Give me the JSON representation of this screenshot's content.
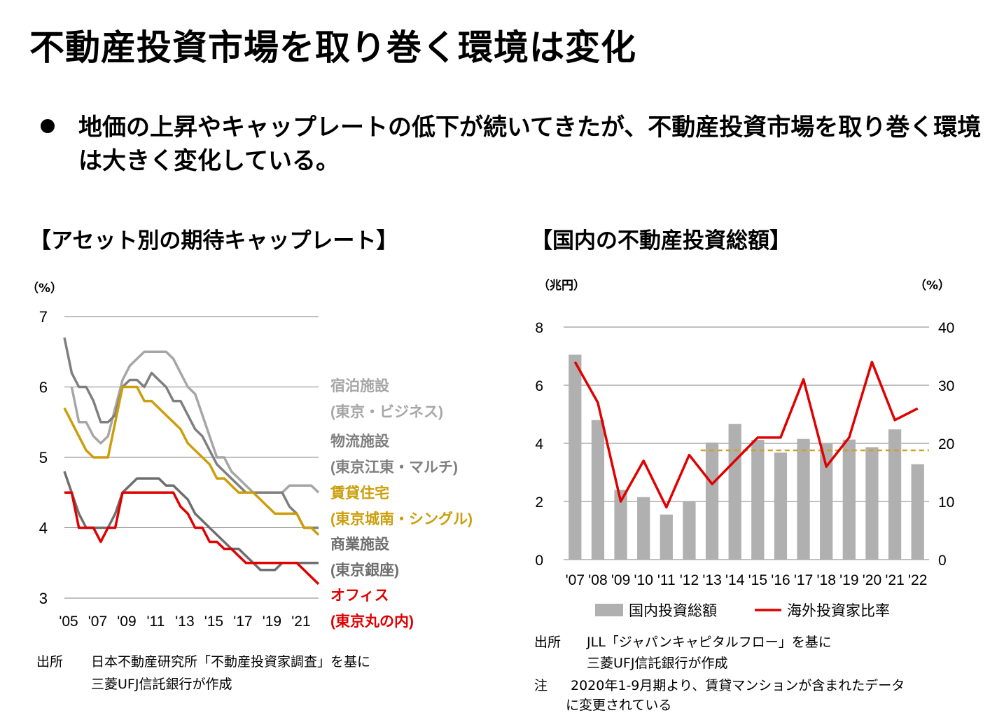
{
  "page": {
    "title": "不動産投資市場を取り巻く環境は変化",
    "bullet": "地価の上昇やキャップレートの低下が続いてきたが、不動産投資市場を取り巻く環境は大きく変化している。"
  },
  "left_chart": {
    "heading": "【アセット別の期待キャップレート】",
    "unit": "（%）",
    "source_label": "出所",
    "source_line1": "日本不動産研究所「不動産投資家調査」を基に",
    "source_line2": "三菱UFJ信託銀行が作成"
  },
  "right_chart": {
    "heading": "【国内の不動産投資総額】",
    "unit_left": "（兆円）",
    "unit_right": "（%）",
    "source_label": "出所",
    "source_line1": "JLL「ジャパンキャピタルフロー」を基に",
    "source_line2": "三菱UFJ信託銀行が作成",
    "note_label": "注",
    "note_line1": "2020年1-9月期より、賃貸マンションが含まれたデータ",
    "note_line2": "に変更されている"
  },
  "colors": {
    "hotel": "#A6A6A6",
    "logistics": "#7F7F7F",
    "residential": "#CC9E0A",
    "retail": "#6E6E6E",
    "office": "#E00000",
    "bar": "#B0B0B0",
    "dashed": "#C9A227",
    "grid": "#808080"
  },
  "chart_data": [
    {
      "type": "line",
      "title": "アセット別の期待キャップレート",
      "ylabel": "（%）",
      "ylim": [
        3,
        7
      ],
      "yticks": [
        "3",
        "4",
        "5",
        "6",
        "7"
      ],
      "x_tick_labels": [
        "'05",
        "'07",
        "'09",
        "'11",
        "'13",
        "'15",
        "'17",
        "'19",
        "'21"
      ],
      "x_range": [
        2005.0,
        2022.5
      ],
      "x_step": 0.5,
      "series": [
        {
          "key": "hotel",
          "name": "宿泊施設",
          "label_line1": "宿泊施設",
          "label_line2": "(東京・ビジネス)",
          "x_start": 2005.5,
          "values": [
            6.0,
            5.5,
            5.5,
            5.3,
            5.2,
            5.3,
            5.7,
            6.1,
            6.3,
            6.4,
            6.5,
            6.5,
            6.5,
            6.5,
            6.4,
            6.2,
            6.0,
            5.9,
            5.6,
            5.3,
            5.0,
            5.0,
            4.8,
            4.7,
            4.6,
            4.5,
            4.5,
            4.5,
            4.5,
            4.5,
            4.6,
            4.6,
            4.6,
            4.6,
            4.5
          ]
        },
        {
          "key": "logistics",
          "name": "物流施設",
          "label_line1": "物流施設",
          "label_line2": "(東京江東・マルチ)",
          "x_start": 2005.0,
          "values": [
            6.7,
            6.2,
            6.0,
            6.0,
            5.8,
            5.5,
            5.5,
            5.6,
            6.0,
            6.1,
            6.1,
            6.0,
            6.2,
            6.1,
            6.0,
            5.8,
            5.8,
            5.6,
            5.4,
            5.3,
            5.1,
            4.9,
            4.8,
            4.7,
            4.6,
            4.5,
            4.5,
            4.5,
            4.5,
            4.5,
            4.5,
            4.3,
            4.2,
            4.0,
            4.0,
            4.0
          ]
        },
        {
          "key": "residential",
          "name": "賃貸住宅",
          "label_line1": "賃貸住宅",
          "label_line2": "(東京城南・シングル)",
          "x_start": 2005.0,
          "values": [
            5.7,
            5.5,
            5.3,
            5.1,
            5.0,
            5.0,
            5.0,
            5.5,
            6.0,
            6.0,
            6.0,
            5.8,
            5.8,
            5.7,
            5.6,
            5.5,
            5.4,
            5.2,
            5.1,
            5.0,
            4.9,
            4.7,
            4.7,
            4.6,
            4.5,
            4.5,
            4.5,
            4.4,
            4.3,
            4.2,
            4.2,
            4.2,
            4.2,
            4.0,
            4.0,
            3.9
          ]
        },
        {
          "key": "retail",
          "name": "商業施設",
          "label_line1": "商業施設",
          "label_line2": "(東京銀座)",
          "x_start": 2005.0,
          "values": [
            4.8,
            4.5,
            4.2,
            4.0,
            4.0,
            4.0,
            4.0,
            4.2,
            4.5,
            4.6,
            4.7,
            4.7,
            4.7,
            4.7,
            4.6,
            4.6,
            4.5,
            4.4,
            4.2,
            4.1,
            4.0,
            3.9,
            3.8,
            3.7,
            3.7,
            3.6,
            3.5,
            3.4,
            3.4,
            3.4,
            3.5,
            3.5,
            3.5,
            3.5,
            3.5,
            3.5
          ]
        },
        {
          "key": "office",
          "name": "オフィス",
          "label_line1": "オフィス",
          "label_line2": "(東京丸の内)",
          "x_start": 2005.0,
          "values": [
            4.5,
            4.5,
            4.0,
            4.0,
            4.0,
            3.8,
            4.0,
            4.0,
            4.5,
            4.5,
            4.5,
            4.5,
            4.5,
            4.5,
            4.5,
            4.5,
            4.3,
            4.2,
            4.0,
            4.0,
            3.8,
            3.8,
            3.7,
            3.7,
            3.6,
            3.5,
            3.5,
            3.5,
            3.5,
            3.5,
            3.5,
            3.5,
            3.5,
            3.4,
            3.3,
            3.2
          ]
        }
      ]
    },
    {
      "type": "bar",
      "title": "国内の不動産投資総額",
      "categories": [
        "'07",
        "'08",
        "'09",
        "'10",
        "'11",
        "'12",
        "'13",
        "'14",
        "'15",
        "'16",
        "'17",
        "'18",
        "'19",
        "'20",
        "'21",
        "'22"
      ],
      "ylabel_left": "（兆円）",
      "ylabel_right": "（%）",
      "ylim_left": [
        0,
        8
      ],
      "ylim_right": [
        0,
        40
      ],
      "yticks_left": [
        "0",
        "2",
        "4",
        "6",
        "8"
      ],
      "yticks_right": [
        "0",
        "10",
        "20",
        "30",
        "40"
      ],
      "series": [
        {
          "name": "国内投資総額",
          "type": "bar",
          "axis": "left",
          "values": [
            7.05,
            4.8,
            2.4,
            2.15,
            1.55,
            1.98,
            4.03,
            4.67,
            4.12,
            3.68,
            4.15,
            4.0,
            4.13,
            3.87,
            4.48,
            3.28
          ]
        },
        {
          "name": "海外投資家比率",
          "type": "line",
          "axis": "right",
          "values": [
            34,
            27,
            10,
            17,
            9,
            18,
            13,
            17,
            21,
            21,
            31,
            16,
            21,
            34,
            24,
            26
          ]
        }
      ],
      "reference_line": {
        "axis": "right",
        "value": 18.8,
        "from_index": 5.5,
        "to_index": 15.5
      }
    }
  ]
}
